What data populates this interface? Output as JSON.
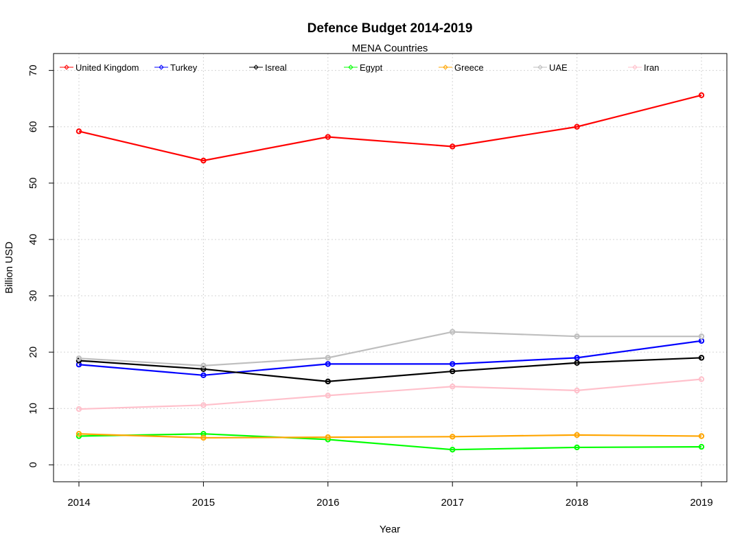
{
  "chart_data": {
    "type": "line",
    "title": "Defence Budget 2014-2019",
    "subtitle": "MENA Countries",
    "xlabel": "Year",
    "ylabel": "Billion USD",
    "x": [
      2014,
      2015,
      2016,
      2017,
      2018,
      2019
    ],
    "ylim": [
      -3,
      73
    ],
    "yticks": [
      0,
      10,
      20,
      30,
      40,
      50,
      60,
      70
    ],
    "grid": true,
    "legend_position": "top",
    "series": [
      {
        "name": "United Kingdom",
        "color": "#ff0000",
        "values": [
          59.2,
          54.0,
          58.2,
          56.5,
          60.0,
          65.6
        ]
      },
      {
        "name": "Turkey",
        "color": "#0000ff",
        "values": [
          17.8,
          15.9,
          17.9,
          17.9,
          19.0,
          22.0
        ]
      },
      {
        "name": "Isreal",
        "color": "#000000",
        "values": [
          18.5,
          17.0,
          14.8,
          16.6,
          18.1,
          19.0
        ]
      },
      {
        "name": "Egypt",
        "color": "#00ff00",
        "values": [
          5.1,
          5.5,
          4.5,
          2.7,
          3.1,
          3.2
        ]
      },
      {
        "name": "Greece",
        "color": "#ffa500",
        "values": [
          5.5,
          4.8,
          4.9,
          5.0,
          5.3,
          5.1
        ]
      },
      {
        "name": "UAE",
        "color": "#bebebe",
        "values": [
          18.9,
          17.6,
          19.0,
          23.6,
          22.8,
          22.8
        ]
      },
      {
        "name": "Iran",
        "color": "#ffc0cb",
        "values": [
          9.9,
          10.6,
          12.3,
          13.9,
          13.2,
          15.2
        ]
      }
    ]
  }
}
